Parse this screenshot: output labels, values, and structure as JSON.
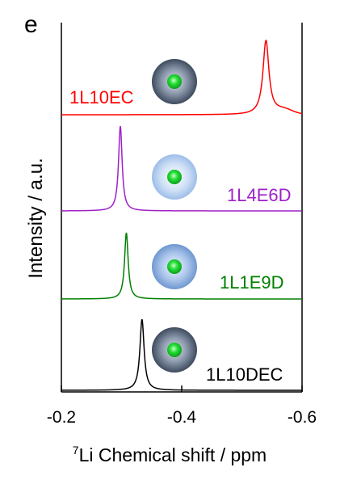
{
  "chart_data": {
    "type": "line",
    "panel_label": "e",
    "xlabel_sup": "7",
    "xlabel_main": "Li Chemical shift / ppm",
    "ylabel": "Intensity / a.u.",
    "xlim": [
      -0.2,
      -0.6
    ],
    "x_reversed": true,
    "x_ticks": [
      -0.2,
      -0.4,
      -0.6
    ],
    "x_tick_labels": [
      "-0.2",
      "-0.4",
      "-0.6"
    ],
    "grid": false,
    "series": [
      {
        "name": "1L10DEC",
        "color": "#000000",
        "peak": -0.334,
        "width": 0.0042,
        "tail": 0
      },
      {
        "name": "1L1E9D",
        "color": "#008000",
        "peak": -0.308,
        "width": 0.0036,
        "tail": 0
      },
      {
        "name": "1L4E6D",
        "color": "#a020c8",
        "peak": -0.298,
        "width": 0.0036,
        "tail": 0
      },
      {
        "name": "1L10EC",
        "color": "#ff0000",
        "peak": -0.54,
        "width": 0.006,
        "tail": 1
      }
    ],
    "icon_shell_colors": [
      "#5b6a80",
      "#7fa6da",
      "#b2cff0",
      "#5b6a80"
    ]
  }
}
